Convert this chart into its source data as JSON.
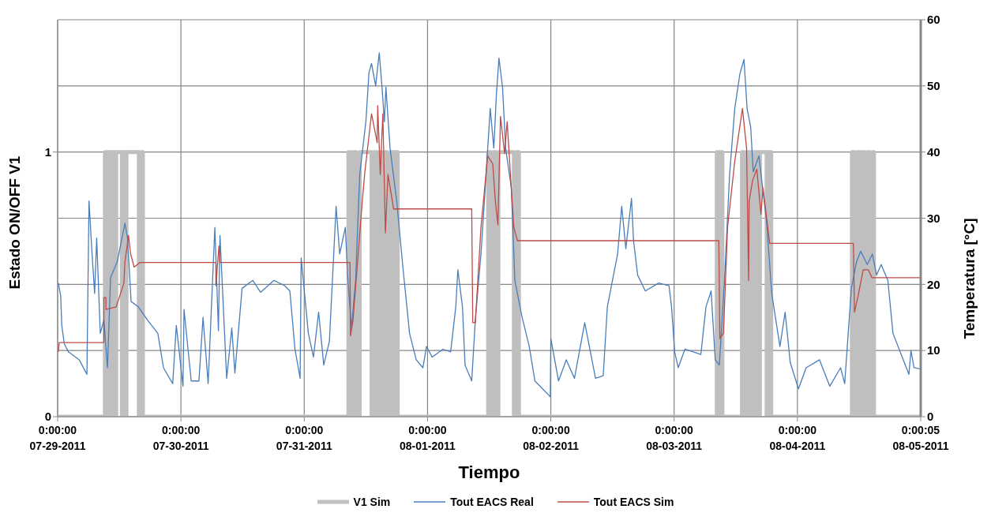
{
  "chart_data": {
    "type": "line",
    "xlabel": "Tiempo",
    "ylabel": "Estado ON/OFF V1",
    "y2label": "Temperatura [°C]",
    "xlim": [
      "2011-07-29",
      "2011-08-05"
    ],
    "xticks": [
      {
        "value": "2011-07-29",
        "label": "0:00:00 07-29-2011"
      },
      {
        "value": "2011-07-30",
        "label": "0:00:00 07-30-2011"
      },
      {
        "value": "2011-07-31",
        "label": "0:00:00 07-31-2011"
      },
      {
        "value": "2011-08-01",
        "label": "0:00:00 08-01-2011"
      },
      {
        "value": "2011-08-02",
        "label": "0:00:00 08-02-2011"
      },
      {
        "value": "2011-08-03",
        "label": "0:00:00 08-03-2011"
      },
      {
        "value": "2011-08-04",
        "label": "0:00:00 08-04-2011"
      },
      {
        "value": "2011-08-05",
        "label": "0:00:05 08-05-2011"
      }
    ],
    "ylim": [
      0,
      1.5
    ],
    "yticks": [
      0,
      1
    ],
    "y2lim": [
      0,
      60
    ],
    "y2ticks": [
      0,
      10,
      20,
      30,
      40,
      50,
      60
    ],
    "grid": true,
    "legend": "bottom",
    "series": [
      {
        "name": "V1 Sim",
        "type": "step",
        "axis": "y",
        "color": "#bfbfbf",
        "x": [
          "2011-07-29T00:00",
          "2011-07-29T09:12",
          "2011-07-29T09:36",
          "2011-07-29T10:00",
          "2011-07-29T10:24",
          "2011-07-29T10:48",
          "2011-07-29T11:06",
          "2011-07-29T11:24",
          "2011-07-29T12:30",
          "2011-07-29T12:48",
          "2011-07-29T13:06",
          "2011-07-29T13:24",
          "2011-07-29T15:48",
          "2011-07-29T16:12",
          "2011-07-29T16:36",
          "2011-07-31T08:36",
          "2011-07-31T09:06",
          "2011-07-31T09:36",
          "2011-07-31T10:06",
          "2011-07-31T10:48",
          "2011-07-31T13:06",
          "2011-07-31T13:36",
          "2011-07-31T14:06",
          "2011-07-31T14:36",
          "2011-07-31T15:06",
          "2011-07-31T15:36",
          "2011-07-31T16:06",
          "2011-07-31T16:48",
          "2011-07-31T17:24",
          "2011-07-31T17:48",
          "2011-07-31T18:12",
          "2011-08-01T11:48",
          "2011-08-01T12:18",
          "2011-08-01T12:48",
          "2011-08-01T13:18",
          "2011-08-01T13:48",
          "2011-08-01T16:48",
          "2011-08-01T17:18",
          "2011-08-01T17:48",
          "2011-08-03T08:18",
          "2011-08-03T08:48",
          "2011-08-03T09:06",
          "2011-08-03T09:24",
          "2011-08-03T13:12",
          "2011-08-03T13:36",
          "2011-08-03T14:12",
          "2011-08-03T14:30",
          "2011-08-03T14:54",
          "2011-08-03T15:24",
          "2011-08-03T15:48",
          "2011-08-03T16:18",
          "2011-08-03T16:42",
          "2011-08-03T18:00",
          "2011-08-03T18:24",
          "2011-08-03T18:54",
          "2011-08-04T10:36",
          "2011-08-04T11:06",
          "2011-08-04T11:36",
          "2011-08-04T12:06",
          "2011-08-04T12:36",
          "2011-08-04T13:06",
          "2011-08-04T13:36",
          "2011-08-04T14:06",
          "2011-08-04T14:36",
          "2011-08-04T14:54",
          "2011-08-05T00:00"
        ],
        "values": [
          0,
          1,
          0,
          1,
          0,
          1,
          0,
          1,
          0,
          1,
          0,
          1,
          0,
          1,
          0,
          1,
          0,
          1,
          0,
          1,
          0,
          1,
          0,
          1,
          0,
          1,
          0,
          1,
          0,
          1,
          0,
          1,
          0,
          1,
          0,
          1,
          0,
          1,
          0,
          1,
          0,
          1,
          0,
          1,
          0,
          1,
          0,
          1,
          0,
          1,
          0,
          1,
          0,
          1,
          0,
          1,
          0,
          1,
          0,
          1,
          0,
          1,
          0,
          1,
          0,
          0
        ]
      },
      {
        "name": "Tout EACS Real",
        "type": "line",
        "axis": "y2",
        "color": "#4a7ebb",
        "x": [
          "2011-07-29T00:09",
          "2011-07-29T00:36",
          "2011-07-29T00:48",
          "2011-07-29T01:18",
          "2011-07-29T02:06",
          "2011-07-29T04:12",
          "2011-07-29T05:42",
          "2011-07-29T06:06",
          "2011-07-29T06:42",
          "2011-07-29T07:12",
          "2011-07-29T07:36",
          "2011-07-29T08:18",
          "2011-07-29T09:00",
          "2011-07-29T09:42",
          "2011-07-29T10:18",
          "2011-07-29T11:36",
          "2011-07-29T13:06",
          "2011-07-29T13:36",
          "2011-07-29T14:18",
          "2011-07-29T15:42",
          "2011-07-29T17:30",
          "2011-07-29T19:30",
          "2011-07-29T20:36",
          "2011-07-29T22:24",
          "2011-07-29T23:06",
          "2011-07-30T00:24",
          "2011-07-30T00:36",
          "2011-07-30T02:00",
          "2011-07-30T03:30",
          "2011-07-30T04:18",
          "2011-07-30T05:18",
          "2011-07-30T06:36",
          "2011-07-30T07:18",
          "2011-07-30T07:36",
          "2011-07-30T08:54",
          "2011-07-30T09:54",
          "2011-07-30T10:30",
          "2011-07-30T11:54",
          "2011-07-30T14:00",
          "2011-07-30T15:30",
          "2011-07-30T18:06",
          "2011-07-30T20:12",
          "2011-07-30T21:12",
          "2011-07-30T22:12",
          "2011-07-30T23:12",
          "2011-07-30T23:24",
          "2011-07-31T00:48",
          "2011-07-31T01:48",
          "2011-07-31T02:48",
          "2011-07-31T03:48",
          "2011-07-31T04:54",
          "2011-07-31T06:12",
          "2011-07-31T06:54",
          "2011-07-31T08:00",
          "2011-07-31T08:30",
          "2011-07-31T09:12",
          "2011-07-31T10:00",
          "2011-07-31T10:48",
          "2011-07-31T12:00",
          "2011-07-31T12:36",
          "2011-07-31T13:06",
          "2011-07-31T13:54",
          "2011-07-31T14:36",
          "2011-07-31T15:06",
          "2011-07-31T15:36",
          "2011-07-31T15:54",
          "2011-07-31T16:42",
          "2011-07-31T18:00",
          "2011-07-31T19:12",
          "2011-07-31T20:30",
          "2011-07-31T21:48",
          "2011-07-31T23:06",
          "2011-07-31T23:48",
          "2011-08-01T00:54",
          "2011-08-01T03:00",
          "2011-08-01T04:30",
          "2011-08-01T05:30",
          "2011-08-01T05:54",
          "2011-08-01T06:48",
          "2011-08-01T07:18",
          "2011-08-01T08:36",
          "2011-08-01T09:18",
          "2011-08-01T10:24",
          "2011-08-01T11:24",
          "2011-08-01T12:12",
          "2011-08-01T12:54",
          "2011-08-01T13:24",
          "2011-08-01T13:54",
          "2011-08-01T14:36",
          "2011-08-01T15:12",
          "2011-08-01T16:18",
          "2011-08-01T17:00",
          "2011-08-01T18:18",
          "2011-08-01T19:48",
          "2011-08-01T20:54",
          "2011-08-01T22:24",
          "2011-08-01T23:54",
          "2011-08-02T00:00",
          "2011-08-02T01:30",
          "2011-08-02T03:00",
          "2011-08-02T04:36",
          "2011-08-02T06:36",
          "2011-08-02T08:42",
          "2011-08-02T10:12",
          "2011-08-02T11:00",
          "2011-08-02T11:42",
          "2011-08-02T13:00",
          "2011-08-02T13:48",
          "2011-08-02T14:36",
          "2011-08-02T15:42",
          "2011-08-02T16:06",
          "2011-08-02T16:54",
          "2011-08-02T18:24",
          "2011-08-02T21:00",
          "2011-08-02T23:00",
          "2011-08-02T23:30",
          "2011-08-03T00:06",
          "2011-08-03T00:48",
          "2011-08-03T02:06",
          "2011-08-03T05:12",
          "2011-08-03T06:12",
          "2011-08-03T07:12",
          "2011-08-03T08:00",
          "2011-08-03T08:48",
          "2011-08-03T09:48",
          "2011-08-03T10:48",
          "2011-08-03T11:48",
          "2011-08-03T12:48",
          "2011-08-03T13:36",
          "2011-08-03T14:12",
          "2011-08-03T14:54",
          "2011-08-03T15:24",
          "2011-08-03T16:30",
          "2011-08-03T18:00",
          "2011-08-03T19:00",
          "2011-08-03T20:36",
          "2011-08-03T21:36",
          "2011-08-03T22:36",
          "2011-08-04T00:12",
          "2011-08-04T01:42",
          "2011-08-04T04:18",
          "2011-08-04T06:18",
          "2011-08-04T08:24",
          "2011-08-04T09:12",
          "2011-08-04T10:30",
          "2011-08-04T11:30",
          "2011-08-04T12:18",
          "2011-08-04T13:36",
          "2011-08-04T14:36",
          "2011-08-04T15:24",
          "2011-08-04T16:18",
          "2011-08-04T17:36",
          "2011-08-04T18:36",
          "2011-08-04T20:12",
          "2011-08-04T21:42",
          "2011-08-04T22:06",
          "2011-08-04T22:42",
          "2011-08-05T00:00"
        ],
        "values": [
          20.2,
          18.2,
          13.8,
          11.0,
          9.8,
          8.6,
          6.4,
          32.6,
          24.6,
          18.6,
          27.0,
          12.6,
          14.6,
          7.4,
          21.0,
          23.4,
          29.2,
          27.0,
          17.4,
          16.6,
          14.6,
          12.6,
          7.4,
          5.0,
          13.8,
          4.6,
          16.2,
          5.4,
          5.4,
          15.0,
          5.0,
          28.6,
          13.0,
          27.4,
          5.8,
          13.4,
          6.6,
          19.4,
          20.6,
          18.8,
          20.6,
          19.8,
          19.0,
          10.2,
          5.8,
          24.0,
          12.6,
          9.0,
          15.8,
          7.8,
          11.4,
          31.8,
          24.6,
          28.6,
          20.6,
          13.4,
          20.6,
          36.6,
          44.6,
          52.0,
          53.4,
          50.0,
          55.0,
          50.2,
          44.6,
          49.8,
          40.6,
          32.6,
          22.6,
          12.6,
          8.6,
          7.4,
          10.6,
          9.0,
          10.2,
          9.8,
          16.6,
          22.2,
          16.6,
          7.8,
          5.4,
          14.6,
          24.6,
          36.6,
          46.6,
          40.6,
          48.6,
          54.2,
          49.8,
          40.6,
          34.6,
          20.6,
          15.4,
          10.6,
          5.4,
          4.2,
          3.0,
          11.8,
          5.4,
          8.6,
          5.8,
          14.2,
          5.8,
          6.2,
          16.6,
          19.4,
          24.6,
          31.8,
          25.4,
          33.0,
          26.6,
          21.4,
          19.0,
          20.2,
          19.8,
          16.6,
          9.8,
          7.4,
          10.2,
          9.4,
          16.6,
          19.0,
          8.6,
          7.8,
          20.6,
          36.6,
          46.6,
          51.8,
          54.0,
          46.6,
          43.8,
          37.0,
          39.4,
          29.4,
          18.6,
          10.6,
          15.8,
          8.2,
          4.2,
          7.4,
          8.6,
          4.6,
          7.4,
          5.0,
          19.4,
          23.4,
          25.0,
          23.0,
          24.6,
          21.4,
          23.0,
          20.6,
          12.6,
          9.4,
          6.4,
          10.0,
          7.4,
          7.2
        ]
      },
      {
        "name": "Tout EACS Sim",
        "type": "line",
        "axis": "y2",
        "color": "#be4b48",
        "x": [
          "2011-07-29T00:09",
          "2011-07-29T00:18",
          "2011-07-29T09:00",
          "2011-07-29T09:00",
          "2011-07-29T09:24",
          "2011-07-29T09:24",
          "2011-07-29T11:24",
          "2011-07-29T12:54",
          "2011-07-29T13:06",
          "2011-07-29T13:48",
          "2011-07-29T14:12",
          "2011-07-29T14:54",
          "2011-07-29T16:00",
          "2011-07-30T06:48",
          "2011-07-30T06:48",
          "2011-07-30T07:24",
          "2011-07-30T07:36",
          "2011-07-31T08:54",
          "2011-07-31T09:00",
          "2011-07-31T09:30",
          "2011-07-31T10:30",
          "2011-07-31T11:18",
          "2011-07-31T11:48",
          "2011-07-31T13:06",
          "2011-07-31T14:12",
          "2011-07-31T14:18",
          "2011-07-31T14:48",
          "2011-07-31T15:18",
          "2011-07-31T15:48",
          "2011-07-31T16:18",
          "2011-07-31T17:24",
          "2011-08-01T08:36",
          "2011-08-01T08:48",
          "2011-08-01T09:18",
          "2011-08-01T10:24",
          "2011-08-01T11:42",
          "2011-08-01T12:42",
          "2011-08-01T13:12",
          "2011-08-01T13:42",
          "2011-08-01T14:12",
          "2011-08-01T15:00",
          "2011-08-01T15:30",
          "2011-08-01T16:18",
          "2011-08-01T16:48",
          "2011-08-01T17:30",
          "2011-08-03T08:42",
          "2011-08-03T08:54",
          "2011-08-03T09:36",
          "2011-08-03T10:24",
          "2011-08-03T11:48",
          "2011-08-03T13:18",
          "2011-08-03T14:06",
          "2011-08-03T14:30",
          "2011-08-03T14:36",
          "2011-08-03T15:18",
          "2011-08-03T16:06",
          "2011-08-03T16:54",
          "2011-08-03T17:18",
          "2011-08-03T18:36",
          "2011-08-04T10:54",
          "2011-08-04T11:06",
          "2011-08-04T11:48",
          "2011-08-04T12:48",
          "2011-08-04T13:48",
          "2011-08-04T14:30",
          "2011-08-05T00:00"
        ],
        "values": [
          9.8,
          11.2,
          11.2,
          18.0,
          18.0,
          16.2,
          16.6,
          20.2,
          23.4,
          27.4,
          24.6,
          22.6,
          23.3,
          23.3,
          19.8,
          25.8,
          23.3,
          23.3,
          12.2,
          14.6,
          24.6,
          32.6,
          37.0,
          45.8,
          41.4,
          47.0,
          36.6,
          45.8,
          27.8,
          36.6,
          31.4,
          31.4,
          14.2,
          14.2,
          28.6,
          39.4,
          38.2,
          32.6,
          29.0,
          45.4,
          39.8,
          44.6,
          34.6,
          28.6,
          26.6,
          26.6,
          11.8,
          12.6,
          28.6,
          38.6,
          46.6,
          40.6,
          20.6,
          32.6,
          35.8,
          37.4,
          30.6,
          34.6,
          26.2,
          26.2,
          15.8,
          18.2,
          22.2,
          22.2,
          21.0,
          21.0
        ]
      }
    ]
  }
}
